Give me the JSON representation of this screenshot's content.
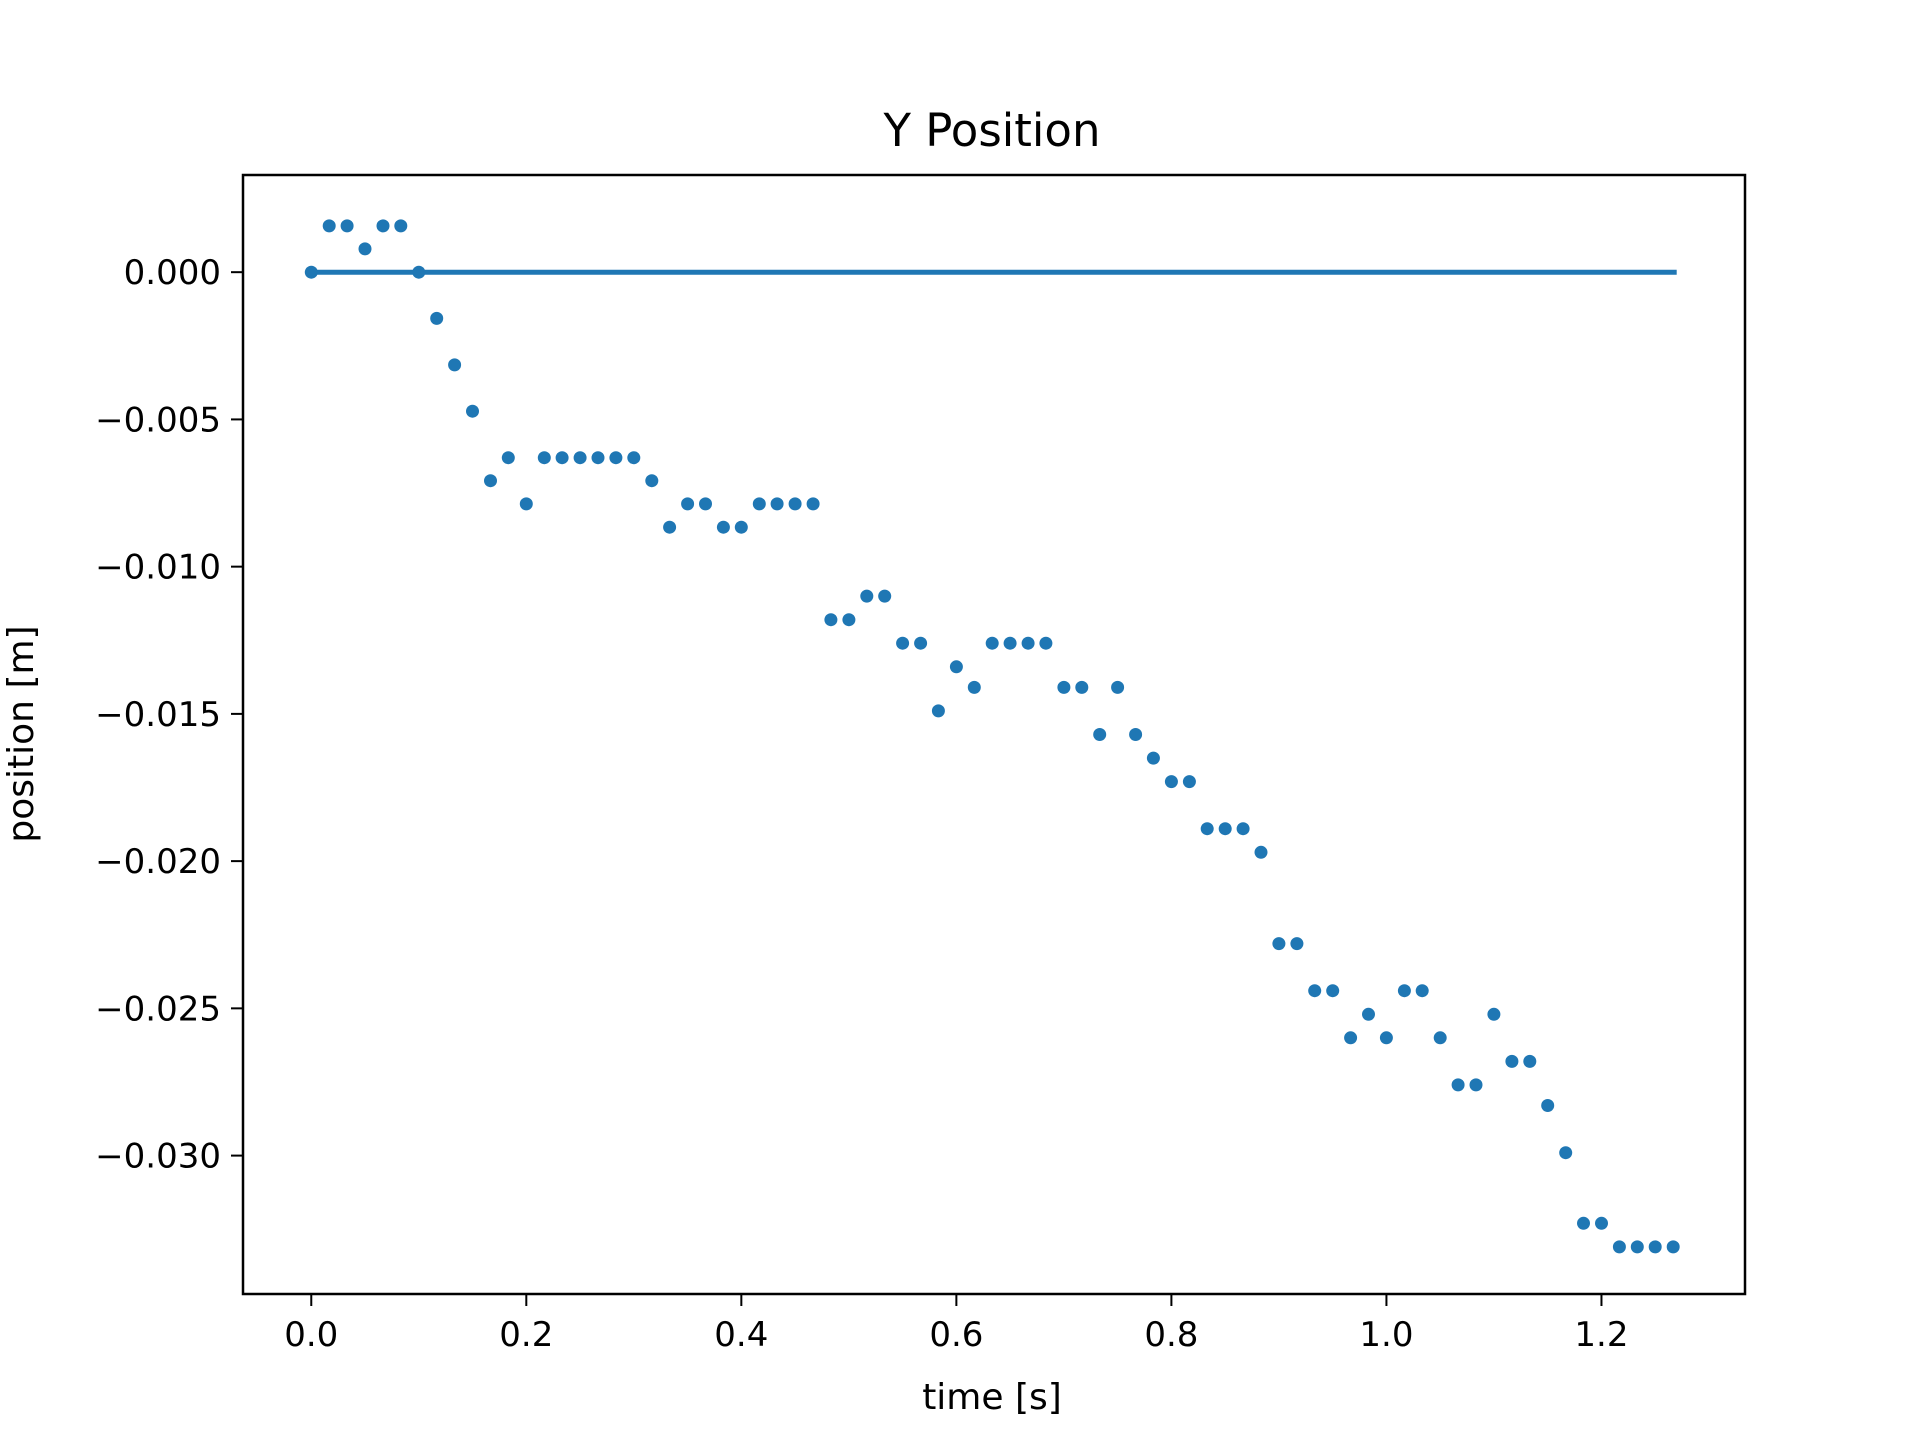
{
  "chart_data": {
    "type": "scatter",
    "title": "Y Position",
    "xlabel": "time [s]",
    "ylabel": "position [m]",
    "xlim": [
      -0.0635,
      1.3335
    ],
    "ylim": [
      -0.0347,
      0.0033
    ],
    "xticks": [
      0.0,
      0.2,
      0.4,
      0.6,
      0.8,
      1.0,
      1.2
    ],
    "xtick_labels": [
      "0.0",
      "0.2",
      "0.4",
      "0.6",
      "0.8",
      "1.0",
      "1.2"
    ],
    "yticks": [
      0.0,
      -0.005,
      -0.01,
      -0.015,
      -0.02,
      -0.025,
      -0.03
    ],
    "ytick_labels": [
      "0.000",
      "−0.005",
      "−0.010",
      "−0.015",
      "−0.020",
      "−0.025",
      "−0.030"
    ],
    "grid": false,
    "legend": "none",
    "color": "#1f77b4",
    "series": [
      {
        "kind": "line",
        "x": [
          0.0,
          1.27
        ],
        "y": [
          0.0,
          0.0
        ]
      },
      {
        "kind": "scatter",
        "x": [
          0.0,
          0.0167,
          0.0333,
          0.05,
          0.0667,
          0.0833,
          0.1,
          0.1167,
          0.1333,
          0.15,
          0.1667,
          0.1833,
          0.2,
          0.2167,
          0.2333,
          0.25,
          0.2667,
          0.2833,
          0.3,
          0.3167,
          0.3333,
          0.35,
          0.3667,
          0.3833,
          0.4,
          0.4167,
          0.4333,
          0.45,
          0.4667,
          0.4833,
          0.5,
          0.5167,
          0.5333,
          0.55,
          0.5667,
          0.5833,
          0.6,
          0.6167,
          0.6333,
          0.65,
          0.6667,
          0.6833,
          0.7,
          0.7167,
          0.7333,
          0.75,
          0.7667,
          0.7833,
          0.8,
          0.8167,
          0.8333,
          0.85,
          0.8667,
          0.8833,
          0.9,
          0.9167,
          0.9333,
          0.95,
          0.9667,
          0.9833,
          1.0,
          1.0167,
          1.0333,
          1.05,
          1.0667,
          1.0833,
          1.1,
          1.1167,
          1.1333,
          1.15,
          1.1667,
          1.1833,
          1.2,
          1.2167,
          1.2333,
          1.25,
          1.2667
        ],
        "y": [
          0.0,
          0.00157,
          0.00157,
          0.00079,
          0.00157,
          0.00157,
          0.0,
          -0.00157,
          -0.00315,
          -0.00472,
          -0.00708,
          -0.0063,
          -0.00787,
          -0.0063,
          -0.0063,
          -0.0063,
          -0.0063,
          -0.0063,
          -0.0063,
          -0.00708,
          -0.00866,
          -0.00787,
          -0.00787,
          -0.00866,
          -0.00866,
          -0.00787,
          -0.00787,
          -0.00787,
          -0.00787,
          -0.0118,
          -0.0118,
          -0.011,
          -0.011,
          -0.0126,
          -0.0126,
          -0.0149,
          -0.0134,
          -0.0141,
          -0.0126,
          -0.0126,
          -0.0126,
          -0.0126,
          -0.0141,
          -0.0141,
          -0.0157,
          -0.0141,
          -0.0157,
          -0.0165,
          -0.0173,
          -0.0173,
          -0.0189,
          -0.0189,
          -0.0189,
          -0.0197,
          -0.0228,
          -0.0228,
          -0.0244,
          -0.0244,
          -0.026,
          -0.0252,
          -0.026,
          -0.0244,
          -0.0244,
          -0.026,
          -0.0276,
          -0.0276,
          -0.0252,
          -0.0268,
          -0.0268,
          -0.0283,
          -0.0299,
          -0.0323,
          -0.0323,
          -0.0331,
          -0.0331,
          -0.0331,
          -0.0331
        ]
      }
    ]
  }
}
